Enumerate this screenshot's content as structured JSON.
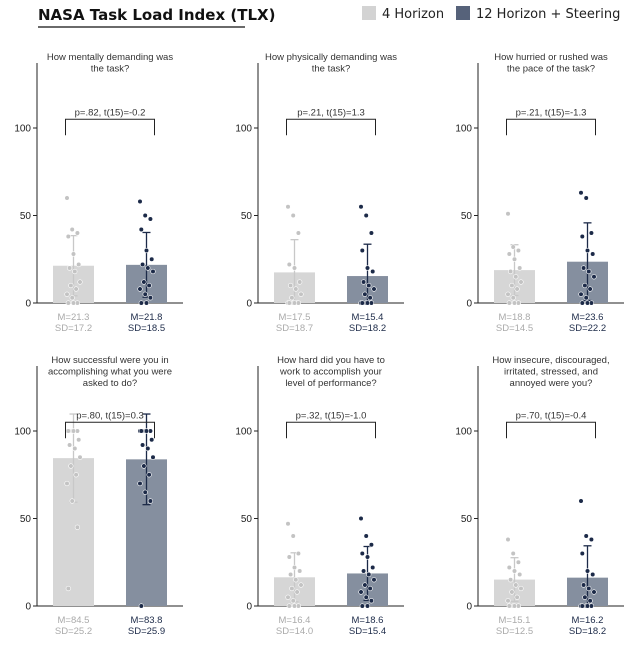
{
  "title": "NASA Task Load Index (TLX)",
  "legend": [
    {
      "label": "4 Horizon",
      "color": "#d3d3d3"
    },
    {
      "label": "12 Horizon + Steering",
      "color": "#56627a"
    }
  ],
  "colors": {
    "bar_a": "#d6d6d6",
    "bar_b": "#858f9f",
    "err_a": "#c8c8c8",
    "err_b": "#1c2a48",
    "dot_a": "#c3c3c3",
    "dot_b": "#1c2a48",
    "text_a": "#aaaaaa",
    "text_b": "#1c2a48"
  },
  "chart_data": {
    "type": "bar",
    "series": [
      "4 Horizon",
      "12 Horizon + Steering"
    ],
    "ylim": [
      0,
      125
    ],
    "yticks": [
      0,
      50,
      100
    ],
    "panels": [
      {
        "question": [
          "How mentally demanding was",
          "the task?"
        ],
        "stat": "p=.82, t(15)=-0.2",
        "mean": [
          21.3,
          21.8
        ],
        "sd": [
          17.2,
          18.5
        ],
        "mean_label": [
          "M=21.3",
          "M=21.8"
        ],
        "sd_label": [
          "SD=17.2",
          "SD=18.5"
        ],
        "points": [
          [
            60,
            42,
            40,
            38,
            28,
            22,
            20,
            18,
            12,
            10,
            8,
            5,
            3,
            0,
            0,
            0
          ],
          [
            58,
            50,
            48,
            42,
            30,
            25,
            22,
            20,
            18,
            12,
            10,
            8,
            5,
            3,
            0,
            0
          ]
        ]
      },
      {
        "question": [
          "How physically demanding was",
          "the task?"
        ],
        "stat": "p=.21, t(15)=1.3",
        "mean": [
          17.5,
          15.4
        ],
        "sd": [
          18.7,
          18.2
        ],
        "mean_label": [
          "M=17.5",
          "M=15.4"
        ],
        "sd_label": [
          "SD=18.7",
          "SD=18.2"
        ],
        "points": [
          [
            55,
            50,
            40,
            22,
            20,
            12,
            10,
            8,
            5,
            3,
            0,
            0,
            0,
            0,
            0,
            0
          ],
          [
            55,
            50,
            40,
            30,
            20,
            18,
            12,
            10,
            8,
            5,
            3,
            0,
            0,
            0,
            0,
            0
          ]
        ]
      },
      {
        "question": [
          "How hurried or rushed was",
          "the pace of the task?"
        ],
        "stat": "p=.21, t(15)=-1.3",
        "mean": [
          18.8,
          23.6
        ],
        "sd": [
          14.5,
          22.2
        ],
        "mean_label": [
          "M=18.8",
          "M=23.6"
        ],
        "sd_label": [
          "SD=14.5",
          "SD=22.2"
        ],
        "points": [
          [
            51,
            32,
            30,
            28,
            25,
            20,
            18,
            15,
            12,
            10,
            8,
            5,
            3,
            0,
            0,
            0
          ],
          [
            63,
            60,
            40,
            38,
            30,
            28,
            20,
            18,
            15,
            10,
            8,
            5,
            3,
            0,
            0,
            0
          ]
        ]
      },
      {
        "question": [
          "How successful were you in",
          "accomplishing what you were",
          "asked to do?"
        ],
        "stat": "p=.80, t(15)=0.3",
        "mean": [
          84.5,
          83.8
        ],
        "sd": [
          25.2,
          25.9
        ],
        "mean_label": [
          "M=84.5",
          "M=83.8"
        ],
        "sd_label": [
          "SD=25.2",
          "SD=25.9"
        ],
        "points": [
          [
            100,
            100,
            100,
            100,
            100,
            95,
            92,
            90,
            85,
            80,
            75,
            70,
            60,
            45,
            10,
            100
          ],
          [
            100,
            100,
            100,
            100,
            100,
            95,
            92,
            90,
            85,
            80,
            75,
            70,
            65,
            60,
            0,
            100
          ]
        ]
      },
      {
        "question": [
          "How hard did you have to",
          "work to accomplish your",
          "level of performance?"
        ],
        "stat": "p=.32, t(15)=-1.0",
        "mean": [
          16.4,
          18.6
        ],
        "sd": [
          14.0,
          15.4
        ],
        "mean_label": [
          "M=16.4",
          "M=18.6"
        ],
        "sd_label": [
          "SD=14.0",
          "SD=15.4"
        ],
        "points": [
          [
            47,
            40,
            30,
            28,
            22,
            20,
            18,
            15,
            12,
            10,
            8,
            5,
            3,
            0,
            0,
            0
          ],
          [
            50,
            40,
            35,
            30,
            28,
            22,
            20,
            18,
            15,
            12,
            10,
            8,
            5,
            3,
            0,
            0
          ]
        ]
      },
      {
        "question": [
          "How insecure, discouraged,",
          "irritated, stressed, and",
          "annoyed were you?"
        ],
        "stat": "p=.70, t(15)=-0.4",
        "mean": [
          15.1,
          16.2
        ],
        "sd": [
          12.5,
          18.2
        ],
        "mean_label": [
          "M=15.1",
          "M=16.2"
        ],
        "sd_label": [
          "SD=12.5",
          "SD=18.2"
        ],
        "points": [
          [
            38,
            30,
            25,
            22,
            20,
            18,
            15,
            12,
            10,
            8,
            5,
            3,
            0,
            0,
            0,
            0
          ],
          [
            60,
            40,
            38,
            30,
            20,
            18,
            12,
            10,
            8,
            5,
            3,
            0,
            0,
            0,
            0,
            0
          ]
        ]
      }
    ]
  }
}
